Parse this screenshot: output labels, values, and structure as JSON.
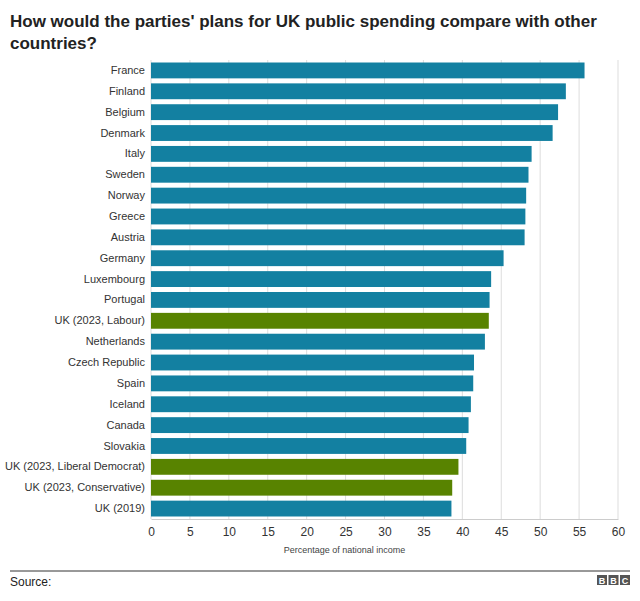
{
  "chart_data": {
    "type": "bar",
    "orientation": "horizontal",
    "title": "How would the parties' plans for UK public spending compare with other countries?",
    "x_label": "Percentage of national income",
    "source": "Source:",
    "credit": "BBC",
    "categories": [
      "France",
      "Finland",
      "Belgium",
      "Denmark",
      "Italy",
      "Sweden",
      "Norway",
      "Greece",
      "Austria",
      "Germany",
      "Luxembourg",
      "Portugal",
      "UK (2023, Labour)",
      "Netherlands",
      "Czech Republic",
      "Spain",
      "Iceland",
      "Canada",
      "Slovakia",
      "UK (2023, Liberal Democrat)",
      "UK (2023, Conservative)",
      "UK (2019)"
    ],
    "values": [
      55.7,
      53.3,
      52.3,
      51.6,
      48.9,
      48.5,
      48.2,
      48.1,
      48.0,
      45.3,
      43.7,
      43.5,
      43.4,
      42.9,
      41.5,
      41.4,
      41.1,
      40.8,
      40.5,
      39.5,
      38.7,
      38.6
    ],
    "colors": [
      "#1380a1",
      "#1380a1",
      "#1380a1",
      "#1380a1",
      "#1380a1",
      "#1380a1",
      "#1380a1",
      "#1380a1",
      "#1380a1",
      "#1380a1",
      "#1380a1",
      "#1380a1",
      "#588300",
      "#1380a1",
      "#1380a1",
      "#1380a1",
      "#1380a1",
      "#1380a1",
      "#1380a1",
      "#588300",
      "#588300",
      "#1380a1"
    ],
    "xlim": [
      0,
      60
    ],
    "xticks": [
      0,
      5,
      10,
      15,
      20,
      25,
      30,
      35,
      40,
      45,
      50,
      55,
      60
    ],
    "grid": true
  }
}
